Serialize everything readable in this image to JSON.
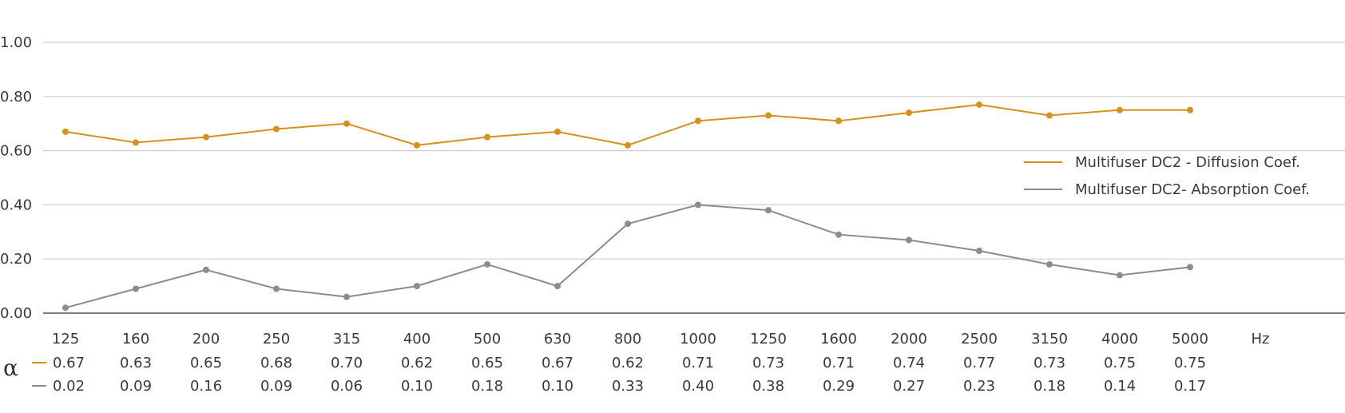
{
  "chart_data": {
    "type": "line",
    "categories": [
      "125",
      "160",
      "200",
      "250",
      "315",
      "400",
      "500",
      "630",
      "800",
      "1000",
      "1250",
      "1600",
      "2000",
      "2500",
      "3150",
      "4000",
      "5000"
    ],
    "x_unit": "Hz",
    "ylim": [
      0,
      1
    ],
    "yticks": [
      "0.00",
      "0.20",
      "0.40",
      "0.60",
      "0.80",
      "1.00"
    ],
    "grid": true,
    "legend_position": "right",
    "table_symbol": "α",
    "series": [
      {
        "name": "Multifuser DC2 - Diffusion Coef.",
        "color": "#d4911b",
        "values": [
          0.67,
          0.63,
          0.65,
          0.68,
          0.7,
          0.62,
          0.65,
          0.67,
          0.62,
          0.71,
          0.73,
          0.71,
          0.74,
          0.77,
          0.73,
          0.75,
          0.75
        ],
        "labels": [
          "0.67",
          "0.63",
          "0.65",
          "0.68",
          "0.70",
          "0.62",
          "0.65",
          "0.67",
          "0.62",
          "0.71",
          "0.73",
          "0.71",
          "0.74",
          "0.77",
          "0.73",
          "0.75",
          "0.75"
        ]
      },
      {
        "name": "Multifuser DC2- Absorption Coef.",
        "color": "#8c8c8c",
        "values": [
          0.02,
          0.09,
          0.16,
          0.09,
          0.06,
          0.1,
          0.18,
          0.1,
          0.33,
          0.4,
          0.38,
          0.29,
          0.27,
          0.23,
          0.18,
          0.14,
          0.17
        ],
        "labels": [
          "0.02",
          "0.09",
          "0.16",
          "0.09",
          "0.06",
          "0.10",
          "0.18",
          "0.10",
          "0.33",
          "0.40",
          "0.38",
          "0.29",
          "0.27",
          "0.23",
          "0.18",
          "0.14",
          "0.17"
        ]
      }
    ]
  }
}
